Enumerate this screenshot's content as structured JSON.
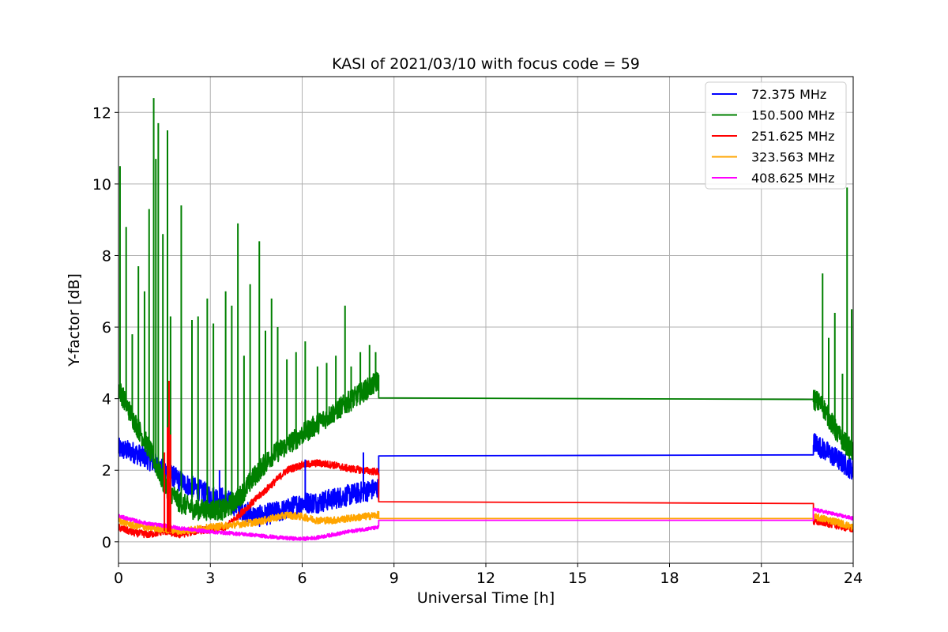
{
  "chart_data": {
    "type": "line",
    "title": "KASI of 2021/03/10 with focus code = 59",
    "xlabel": "Universal Time [h]",
    "ylabel": "Y-factor [dB]",
    "xlim": [
      0,
      24
    ],
    "ylim": [
      -0.6,
      13
    ],
    "xticks": [
      0,
      3,
      6,
      9,
      12,
      15,
      18,
      21,
      24
    ],
    "yticks": [
      0,
      2,
      4,
      6,
      8,
      10,
      12
    ],
    "grid": true,
    "legend_position": "top-right",
    "series": [
      {
        "name": "72.375 MHz",
        "legend_label": "  72.375 MHz",
        "color": "#0000ff",
        "points": [
          [
            0,
            2.6
          ],
          [
            0.5,
            2.5
          ],
          [
            1,
            2.3
          ],
          [
            1.5,
            2.0
          ],
          [
            2,
            1.7
          ],
          [
            2.5,
            1.5
          ],
          [
            3,
            1.3
          ],
          [
            3.5,
            1.2
          ],
          [
            4,
            0.9
          ],
          [
            4.5,
            0.7
          ],
          [
            5,
            0.8
          ],
          [
            5.5,
            0.9
          ],
          [
            6,
            1.1
          ],
          [
            6.5,
            1.1
          ],
          [
            7,
            1.2
          ],
          [
            7.5,
            1.3
          ],
          [
            8,
            1.4
          ],
          [
            8.5,
            1.5
          ],
          [
            8.5,
            2.4
          ],
          [
            22.7,
            2.43
          ],
          [
            22.7,
            2.8
          ],
          [
            23,
            2.6
          ],
          [
            23.5,
            2.3
          ],
          [
            24,
            2.0
          ]
        ],
        "band": 0.3
      },
      {
        "name": "150.500 MHz",
        "legend_label": "150.500 MHz",
        "color": "#008000",
        "points": [
          [
            0,
            4.3
          ],
          [
            0.5,
            3.4
          ],
          [
            1,
            2.6
          ],
          [
            1.5,
            1.6
          ],
          [
            2,
            1.1
          ],
          [
            2.5,
            0.9
          ],
          [
            3,
            0.9
          ],
          [
            3.5,
            0.9
          ],
          [
            4,
            1.3
          ],
          [
            4.5,
            1.9
          ],
          [
            5,
            2.4
          ],
          [
            5.5,
            2.7
          ],
          [
            6,
            3.0
          ],
          [
            6.5,
            3.3
          ],
          [
            7,
            3.6
          ],
          [
            7.5,
            3.9
          ],
          [
            8,
            4.2
          ],
          [
            8.5,
            4.5
          ],
          [
            8.5,
            4.02
          ],
          [
            22.7,
            3.98
          ],
          [
            22.7,
            4.0
          ],
          [
            23,
            3.8
          ],
          [
            23.5,
            3.0
          ],
          [
            24,
            2.5
          ]
        ],
        "band": 0.3
      },
      {
        "name": "251.625 MHz",
        "legend_label": "251.625 MHz",
        "color": "#ff0000",
        "points": [
          [
            0,
            0.4
          ],
          [
            0.5,
            0.25
          ],
          [
            1,
            0.2
          ],
          [
            1.5,
            0.3
          ],
          [
            2,
            0.2
          ],
          [
            2.5,
            0.3
          ],
          [
            3,
            0.35
          ],
          [
            3.5,
            0.4
          ],
          [
            4,
            0.8
          ],
          [
            4.5,
            1.2
          ],
          [
            5,
            1.6
          ],
          [
            5.5,
            2.0
          ],
          [
            6,
            2.15
          ],
          [
            6.5,
            2.2
          ],
          [
            7,
            2.15
          ],
          [
            7.5,
            2.05
          ],
          [
            8,
            2.0
          ],
          [
            8.5,
            1.95
          ],
          [
            8.5,
            1.12
          ],
          [
            22.7,
            1.07
          ],
          [
            22.7,
            0.55
          ],
          [
            23,
            0.55
          ],
          [
            23.5,
            0.45
          ],
          [
            24,
            0.35
          ]
        ],
        "band": 0.1
      },
      {
        "name": "323.563 MHz",
        "legend_label": "323.563 MHz",
        "color": "#ffa500",
        "points": [
          [
            0,
            0.6
          ],
          [
            0.5,
            0.45
          ],
          [
            1,
            0.4
          ],
          [
            1.5,
            0.35
          ],
          [
            2,
            0.3
          ],
          [
            2.5,
            0.35
          ],
          [
            3,
            0.4
          ],
          [
            3.5,
            0.45
          ],
          [
            4,
            0.5
          ],
          [
            4.5,
            0.55
          ],
          [
            5,
            0.65
          ],
          [
            5.5,
            0.75
          ],
          [
            6,
            0.7
          ],
          [
            6.5,
            0.6
          ],
          [
            7,
            0.6
          ],
          [
            7.5,
            0.65
          ],
          [
            8,
            0.7
          ],
          [
            8.5,
            0.75
          ],
          [
            8.5,
            0.65
          ],
          [
            22.7,
            0.65
          ],
          [
            22.7,
            0.7
          ],
          [
            23,
            0.65
          ],
          [
            23.5,
            0.55
          ],
          [
            24,
            0.4
          ]
        ],
        "band": 0.1
      },
      {
        "name": "408.625 MHz",
        "legend_label": "408.625 MHz",
        "color": "#ff00ff",
        "points": [
          [
            0,
            0.72
          ],
          [
            0.5,
            0.6
          ],
          [
            1,
            0.5
          ],
          [
            1.5,
            0.45
          ],
          [
            2,
            0.38
          ],
          [
            2.5,
            0.33
          ],
          [
            3,
            0.28
          ],
          [
            3.5,
            0.25
          ],
          [
            4,
            0.22
          ],
          [
            4.5,
            0.18
          ],
          [
            5,
            0.14
          ],
          [
            5.5,
            0.1
          ],
          [
            6,
            0.08
          ],
          [
            6.5,
            0.12
          ],
          [
            7,
            0.2
          ],
          [
            7.5,
            0.28
          ],
          [
            8,
            0.35
          ],
          [
            8.5,
            0.4
          ],
          [
            8.5,
            0.6
          ],
          [
            22.7,
            0.6
          ],
          [
            22.7,
            0.9
          ],
          [
            23,
            0.85
          ],
          [
            23.5,
            0.75
          ],
          [
            24,
            0.65
          ]
        ],
        "band": 0.05
      }
    ],
    "spikes": [
      {
        "series": "150.500 MHz",
        "x": [
          0.05,
          0.25,
          0.45,
          0.65,
          0.85,
          1.0,
          1.15,
          1.22,
          1.3,
          1.45,
          1.6,
          1.7,
          2.05,
          2.4,
          2.6,
          2.9,
          3.1,
          3.5,
          3.7,
          3.9,
          4.1,
          4.3,
          4.6,
          4.8,
          5.0,
          5.2,
          5.5,
          5.8,
          6.1,
          6.5,
          6.8,
          7.1,
          7.4,
          7.6,
          7.9,
          8.2,
          8.4,
          23.0,
          23.2,
          23.4,
          23.65,
          23.8,
          23.95
        ],
        "y": [
          10.5,
          8.8,
          5.8,
          7.7,
          7.0,
          9.3,
          12.4,
          10.7,
          11.7,
          8.6,
          11.5,
          6.3,
          9.4,
          6.2,
          6.3,
          6.8,
          6.1,
          7.0,
          6.6,
          8.9,
          5.2,
          7.2,
          8.4,
          5.9,
          6.8,
          6.0,
          5.1,
          5.3,
          5.6,
          4.9,
          5.0,
          5.2,
          6.6,
          4.9,
          5.3,
          5.5,
          5.3,
          7.5,
          5.7,
          6.4,
          4.7,
          9.9,
          6.5
        ]
      },
      {
        "series": "251.625 MHz",
        "x": [
          1.5,
          1.6,
          1.65,
          1.7
        ],
        "y": [
          2.5,
          3.2,
          4.5,
          3.0
        ]
      },
      {
        "series": "72.375 MHz",
        "x": [
          3.3,
          6.1,
          8.0
        ],
        "y": [
          2.0,
          2.3,
          2.5
        ]
      }
    ]
  }
}
